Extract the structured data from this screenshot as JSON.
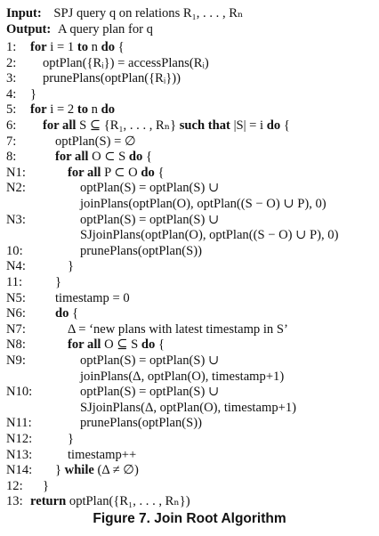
{
  "header": {
    "input_label": "Input:",
    "input_text": "SPJ query q on relations R₁, . . . , Rₙ",
    "output_label": "Output:",
    "output_text": "A query plan for q"
  },
  "lines": [
    {
      "num": "1:",
      "indent": 0,
      "text": "for i = 1 to n do {"
    },
    {
      "num": "2:",
      "indent": 1,
      "text": "optPlan({Rᵢ}) = accessPlans(Rᵢ)"
    },
    {
      "num": "3:",
      "indent": 1,
      "text": "prunePlans(optPlan({Rᵢ}))"
    },
    {
      "num": "4:",
      "indent": 0,
      "text": "}"
    },
    {
      "num": "5:",
      "indent": 0,
      "text": "for i = 2 to n do"
    },
    {
      "num": "6:",
      "indent": 1,
      "text": "for all S ⊆ {R₁, . . . , Rₙ} such that |S| = i do {"
    },
    {
      "num": "7:",
      "indent": 2,
      "text": "optPlan(S) = ∅"
    },
    {
      "num": "8:",
      "indent": 2,
      "text": "for all O ⊂ S do {"
    },
    {
      "num": "N1:",
      "indent": 3,
      "text": "for all P ⊂ O do {"
    },
    {
      "num": "N2:",
      "indent": 4,
      "text": "optPlan(S) = optPlan(S) ∪"
    },
    {
      "num": "",
      "indent": 4,
      "text": "joinPlans(optPlan(O), optPlan((S − O) ∪ P), 0)"
    },
    {
      "num": "N3:",
      "indent": 4,
      "text": "optPlan(S) = optPlan(S) ∪"
    },
    {
      "num": "",
      "indent": 4,
      "text": "SJjoinPlans(optPlan(O), optPlan((S − O) ∪ P), 0)"
    },
    {
      "num": "10:",
      "indent": 4,
      "text": "prunePlans(optPlan(S))"
    },
    {
      "num": "N4:",
      "indent": 3,
      "text": "}"
    },
    {
      "num": "11:",
      "indent": 2,
      "text": "}"
    },
    {
      "num": "N5:",
      "indent": 2,
      "text": "timestamp = 0"
    },
    {
      "num": "N6:",
      "indent": 2,
      "text": "do {"
    },
    {
      "num": "N7:",
      "indent": 3,
      "text": "Δ = ‘new plans with latest timestamp in S’"
    },
    {
      "num": "N8:",
      "indent": 3,
      "text": "for all O ⊆ S do {"
    },
    {
      "num": "N9:",
      "indent": 4,
      "text": "optPlan(S) = optPlan(S) ∪"
    },
    {
      "num": "",
      "indent": 4,
      "text": "joinPlans(Δ, optPlan(O), timestamp+1)"
    },
    {
      "num": "N10:",
      "indent": 4,
      "text": "optPlan(S) = optPlan(S) ∪"
    },
    {
      "num": "",
      "indent": 4,
      "text": "SJjoinPlans(Δ, optPlan(O), timestamp+1)"
    },
    {
      "num": "N11:",
      "indent": 4,
      "text": "prunePlans(optPlan(S))"
    },
    {
      "num": "N12:",
      "indent": 3,
      "text": "}"
    },
    {
      "num": "N13:",
      "indent": 3,
      "text": "timestamp++"
    },
    {
      "num": "N14:",
      "indent": 2,
      "text": "} while (Δ ≠ ∅)"
    },
    {
      "num": "12:",
      "indent": 1,
      "text": "}"
    },
    {
      "num": "13:",
      "indent": 0,
      "text": "return optPlan({R₁, . . . , Rₙ})"
    }
  ],
  "caption": "Figure 7. Join Root Algorithm"
}
